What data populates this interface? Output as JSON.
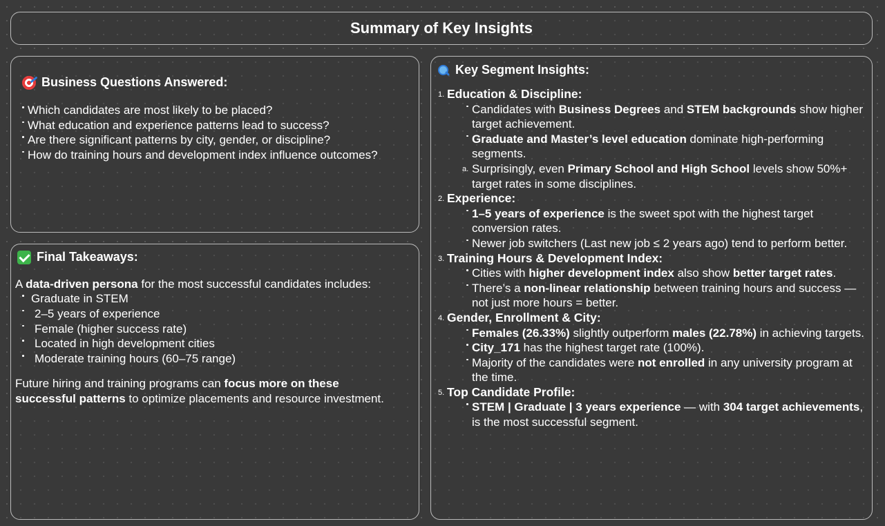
{
  "title": "Summary  of Key Insights",
  "questions": {
    "icon": "target-icon",
    "heading": "Business Questions Answered:",
    "items": [
      "Which candidates are most likely to be placed?",
      "What education and experience patterns lead to success?",
      "Are there significant patterns by city, gender, or discipline?",
      "How do training hours and development index influence outcomes?"
    ]
  },
  "takeaways": {
    "icon": "check-icon",
    "heading": "Final Takeaways:",
    "intro_a": "A ",
    "intro_b": "data-driven persona",
    "intro_c": " for the most successful candidates includes:",
    "persona": [
      "Graduate in STEM",
      "2–5 years of experience",
      "Female (higher success rate)",
      "Located in high development cities",
      "Moderate training hours (60–75 range)"
    ],
    "closing_a": "Future hiring and training programs can ",
    "closing_b": "focus more on these successful patterns",
    "closing_c": " to optimize placements and resource investment."
  },
  "insights": {
    "icon": "magnifier-icon",
    "heading": "Key Segment Insights:",
    "sections": [
      {
        "num": "1.",
        "title": "Education & Discipline:",
        "items": [
          {
            "a": "Candidates with ",
            "b": "Business Degrees",
            "c": " and ",
            "d": "STEM backgrounds",
            "e": " show higher target achievement."
          },
          {
            "a": "",
            "b": "Graduate and Master’s level education",
            "c": " dominate high-performing segments."
          },
          {
            "mark": "a.",
            "a": "Surprisingly, even ",
            "b": "Primary School and High School",
            "c": " levels show 50%+ target rates in some disciplines."
          }
        ]
      },
      {
        "num": "2.",
        "title": "Experience:",
        "items": [
          {
            "a": "",
            "b": "1–5 years of experience",
            "c": " is the sweet spot with the highest target conversion rates."
          },
          {
            "a": "Newer job switchers (Last new job ≤ 2 years ago) tend to perform better."
          }
        ]
      },
      {
        "num": "3.",
        "title": "Training Hours & Development Index:",
        "items": [
          {
            "a": "Cities with ",
            "b": "higher development index",
            "c": " also show ",
            "d": "better target rates",
            "e": "."
          },
          {
            "a": "There’s a ",
            "b": "non-linear relationship",
            "c": " between training hours and success — not just more hours = better."
          }
        ]
      },
      {
        "num": "4.",
        "title": "Gender, Enrollment & City:",
        "items": [
          {
            "a": "",
            "b": "Females (26.33%)",
            "c": " slightly outperform ",
            "d": "males (22.78%)",
            "e": " in achieving targets."
          },
          {
            "a": "",
            "b": "City_171",
            "c": " has the highest target rate (100%)."
          },
          {
            "a": "Majority of the candidates were ",
            "b": "not enrolled",
            "c": " in any university program at the time."
          }
        ]
      },
      {
        "num": "5.",
        "title": "Top Candidate Profile:",
        "items": [
          {
            "a": "",
            "b": "STEM | Graduate | 3 years experience",
            "c": " — with ",
            "d": "304 target achievements",
            "e": ", is the most successful segment."
          }
        ]
      }
    ]
  }
}
